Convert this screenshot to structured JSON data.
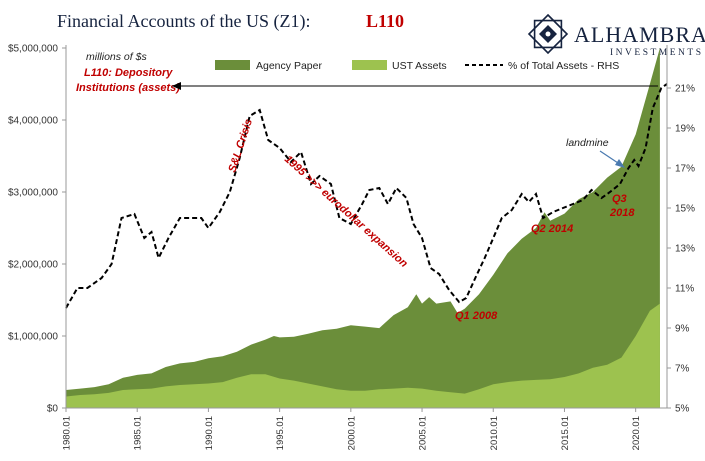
{
  "header": {
    "title": "Financial Accounts of the US (Z1):",
    "code": "L110"
  },
  "logo": {
    "name": "ALHAMBRA",
    "subtitle": "INVESTMENTS",
    "icon": "alhambra-star-icon"
  },
  "annotations": {
    "units": "millions of $s",
    "series_line1": "L110: Depository",
    "series_line2": "Institutions (assets)",
    "snl": "S&L Crisis",
    "eurodollar": "1995 >>> eurodollar expansion",
    "q1_2008": "Q1 2008",
    "q2_2014": "Q2 2014",
    "q3": "Q3",
    "y2018": "2018",
    "landmine": "landmine"
  },
  "colors": {
    "agency": "#6b8e3a",
    "ust": "#9dc24f",
    "line": "#000000",
    "accent_red": "#c00000",
    "navy": "#16233f"
  },
  "chart_data": {
    "type": "area",
    "x_label": "",
    "y_label": "",
    "x_range": [
      1980.0,
      2022.2
    ],
    "ylim": [
      0,
      5000000
    ],
    "y2lim": [
      5,
      23
    ],
    "y_ticks": [
      "$0",
      "$1,000,000",
      "$2,000,000",
      "$3,000,000",
      "$4,000,000",
      "$5,000,000"
    ],
    "y_tick_values": [
      0,
      1000000,
      2000000,
      3000000,
      4000000,
      5000000
    ],
    "y2_ticks": [
      "5%",
      "7%",
      "9%",
      "11%",
      "13%",
      "15%",
      "17%",
      "19%",
      "21%"
    ],
    "y2_tick_values": [
      5,
      7,
      9,
      11,
      13,
      15,
      17,
      19,
      21
    ],
    "x_ticks": [
      "1980.01",
      "1985.01",
      "1990.01",
      "1995.01",
      "2000.01",
      "2005.01",
      "2010.01",
      "2015.01",
      "2020.01"
    ],
    "x_tick_values": [
      1980,
      1985,
      1990,
      1995,
      2000,
      2005,
      2010,
      2015,
      2020
    ],
    "grid": false,
    "legend_position": "top",
    "series": [
      {
        "name": "Agency Paper",
        "kind": "stacked-area",
        "points": [
          [
            1980.0,
            250000
          ],
          [
            1981.0,
            270000
          ],
          [
            1982.0,
            290000
          ],
          [
            1983.0,
            330000
          ],
          [
            1984.0,
            420000
          ],
          [
            1985.0,
            460000
          ],
          [
            1986.0,
            480000
          ],
          [
            1987.0,
            570000
          ],
          [
            1988.0,
            620000
          ],
          [
            1989.0,
            640000
          ],
          [
            1990.0,
            690000
          ],
          [
            1991.0,
            720000
          ],
          [
            1992.0,
            780000
          ],
          [
            1993.0,
            880000
          ],
          [
            1994.0,
            950000
          ],
          [
            1994.6,
            1000000
          ],
          [
            1995.0,
            980000
          ],
          [
            1996.0,
            990000
          ],
          [
            1997.0,
            1030000
          ],
          [
            1998.0,
            1080000
          ],
          [
            1999.0,
            1100000
          ],
          [
            2000.0,
            1150000
          ],
          [
            2001.0,
            1130000
          ],
          [
            2002.0,
            1110000
          ],
          [
            2003.0,
            1290000
          ],
          [
            2004.0,
            1400000
          ],
          [
            2004.6,
            1580000
          ],
          [
            2005.0,
            1450000
          ],
          [
            2005.5,
            1540000
          ],
          [
            2006.0,
            1450000
          ],
          [
            2007.0,
            1480000
          ],
          [
            2007.5,
            1320000
          ],
          [
            2008.0,
            1380000
          ],
          [
            2009.0,
            1580000
          ],
          [
            2010.0,
            1850000
          ],
          [
            2011.0,
            2150000
          ],
          [
            2012.0,
            2350000
          ],
          [
            2013.0,
            2500000
          ],
          [
            2013.6,
            2720000
          ],
          [
            2014.0,
            2600000
          ],
          [
            2015.0,
            2700000
          ],
          [
            2016.0,
            2900000
          ],
          [
            2017.0,
            3000000
          ],
          [
            2018.0,
            3200000
          ],
          [
            2019.0,
            3350000
          ],
          [
            2020.0,
            3800000
          ],
          [
            2021.0,
            4500000
          ],
          [
            2021.7,
            5000000
          ]
        ]
      },
      {
        "name": "UST Assets",
        "kind": "stacked-area",
        "points": [
          [
            1980.0,
            160000
          ],
          [
            1981.0,
            180000
          ],
          [
            1982.0,
            190000
          ],
          [
            1983.0,
            210000
          ],
          [
            1984.0,
            250000
          ],
          [
            1985.0,
            260000
          ],
          [
            1986.0,
            270000
          ],
          [
            1987.0,
            300000
          ],
          [
            1988.0,
            320000
          ],
          [
            1989.0,
            330000
          ],
          [
            1990.0,
            340000
          ],
          [
            1991.0,
            360000
          ],
          [
            1992.0,
            420000
          ],
          [
            1993.0,
            470000
          ],
          [
            1994.0,
            470000
          ],
          [
            1995.0,
            410000
          ],
          [
            1996.0,
            380000
          ],
          [
            1997.0,
            340000
          ],
          [
            1998.0,
            300000
          ],
          [
            1999.0,
            260000
          ],
          [
            2000.0,
            240000
          ],
          [
            2001.0,
            240000
          ],
          [
            2002.0,
            260000
          ],
          [
            2003.0,
            270000
          ],
          [
            2004.0,
            280000
          ],
          [
            2005.0,
            270000
          ],
          [
            2006.0,
            240000
          ],
          [
            2007.0,
            220000
          ],
          [
            2008.0,
            200000
          ],
          [
            2009.0,
            260000
          ],
          [
            2010.0,
            330000
          ],
          [
            2011.0,
            360000
          ],
          [
            2012.0,
            380000
          ],
          [
            2013.0,
            390000
          ],
          [
            2014.0,
            400000
          ],
          [
            2015.0,
            430000
          ],
          [
            2016.0,
            480000
          ],
          [
            2017.0,
            560000
          ],
          [
            2018.0,
            600000
          ],
          [
            2019.0,
            700000
          ],
          [
            2020.0,
            1000000
          ],
          [
            2021.0,
            1350000
          ],
          [
            2021.7,
            1450000
          ]
        ]
      },
      {
        "name": "% of Total Assets - RHS",
        "kind": "dashed-line",
        "axis": "right",
        "points": [
          [
            1980.0,
            10.0
          ],
          [
            1980.8,
            11.0
          ],
          [
            1981.5,
            11.0
          ],
          [
            1982.5,
            11.5
          ],
          [
            1983.2,
            12.2
          ],
          [
            1983.9,
            14.5
          ],
          [
            1984.8,
            14.7
          ],
          [
            1985.5,
            13.5
          ],
          [
            1986.0,
            13.8
          ],
          [
            1986.5,
            12.5
          ],
          [
            1987.2,
            13.5
          ],
          [
            1988.0,
            14.5
          ],
          [
            1988.8,
            14.5
          ],
          [
            1989.5,
            14.5
          ],
          [
            1990.0,
            14.0
          ],
          [
            1990.8,
            14.8
          ],
          [
            1991.5,
            15.8
          ],
          [
            1992.2,
            17.5
          ],
          [
            1992.9,
            19.6
          ],
          [
            1993.6,
            19.9
          ],
          [
            1994.2,
            18.4
          ],
          [
            1995.0,
            18.0
          ],
          [
            1995.8,
            17.3
          ],
          [
            1996.5,
            17.8
          ],
          [
            1997.2,
            16.2
          ],
          [
            1997.8,
            16.6
          ],
          [
            1998.6,
            16.2
          ],
          [
            1999.2,
            14.5
          ],
          [
            2000.0,
            14.2
          ],
          [
            2000.8,
            15.2
          ],
          [
            2001.3,
            15.9
          ],
          [
            2002.0,
            16.0
          ],
          [
            2002.6,
            15.2
          ],
          [
            2003.2,
            16.0
          ],
          [
            2003.9,
            15.5
          ],
          [
            2004.4,
            14.2
          ],
          [
            2005.0,
            13.5
          ],
          [
            2005.6,
            12.0
          ],
          [
            2006.2,
            11.7
          ],
          [
            2006.9,
            10.9
          ],
          [
            2007.6,
            10.3
          ],
          [
            2008.1,
            10.5
          ],
          [
            2008.8,
            11.6
          ],
          [
            2009.4,
            12.5
          ],
          [
            2010.0,
            13.5
          ],
          [
            2010.6,
            14.5
          ],
          [
            2011.3,
            14.9
          ],
          [
            2012.0,
            15.7
          ],
          [
            2012.5,
            15.3
          ],
          [
            2013.0,
            15.7
          ],
          [
            2013.5,
            14.5
          ],
          [
            2014.2,
            14.8
          ],
          [
            2014.9,
            15.0
          ],
          [
            2015.6,
            15.2
          ],
          [
            2016.3,
            15.4
          ],
          [
            2016.9,
            15.9
          ],
          [
            2017.6,
            15.5
          ],
          [
            2018.2,
            15.8
          ],
          [
            2018.9,
            16.2
          ],
          [
            2019.5,
            17.0
          ],
          [
            2019.9,
            17.4
          ],
          [
            2020.2,
            17.1
          ],
          [
            2020.7,
            18.0
          ],
          [
            2021.2,
            20.0
          ],
          [
            2021.8,
            21.0
          ],
          [
            2022.2,
            21.2
          ]
        ]
      }
    ]
  }
}
